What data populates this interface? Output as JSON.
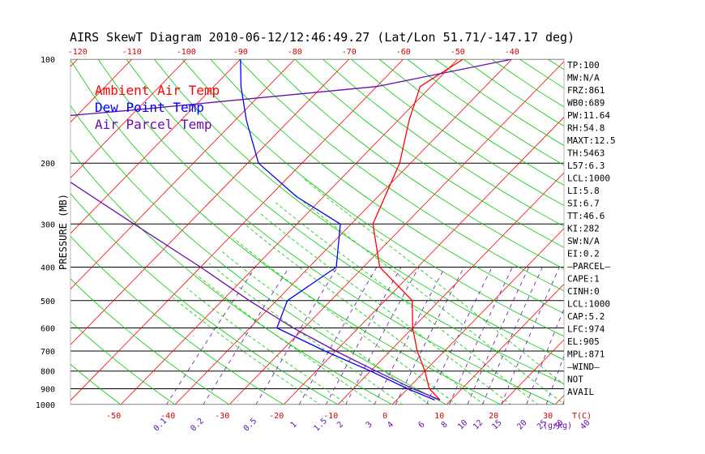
{
  "chart_data": {
    "type": "line",
    "title": "AIRS SkewT Diagram 2010-06-12/12:46:49.27 (Lat/Lon 51.71/-147.17 deg)",
    "ylabel": "PRESSURE (MB)",
    "x_unit_label": "T(C)",
    "mixing_unit_label": "(g/kg)",
    "y_scale": "log",
    "ylim": [
      1000,
      100
    ],
    "pressure_ticks": [
      "100",
      "200",
      "300",
      "400",
      "500",
      "600",
      "700",
      "800",
      "900",
      "1000"
    ],
    "top_temp_ticks": [
      "-120",
      "-110",
      "-100",
      "-90",
      "-80",
      "-70",
      "-60",
      "-50",
      "-40"
    ],
    "bottom_temp_ticks": [
      "-50",
      "-40",
      "-30",
      "-20",
      "-10",
      "0",
      "10",
      "20",
      "30"
    ],
    "mixing_ratio_labels": [
      "0.1",
      "0.2",
      "0.5",
      "1",
      "1.5",
      "2",
      "3",
      "4",
      "6",
      "8",
      "10",
      "12",
      "15",
      "20",
      "25",
      "30",
      "40"
    ],
    "legend": [
      {
        "name": "Ambient Air Temp",
        "color": "#ff0000"
      },
      {
        "name": "Dew Point Temp",
        "color": "#0000ff"
      },
      {
        "name": "Air Parcel Temp",
        "color": "#6a0dad"
      }
    ],
    "series": [
      {
        "name": "Ambient Air Temp",
        "color": "#ff0000",
        "points": [
          [
            8,
            970
          ],
          [
            4,
            900
          ],
          [
            0,
            800
          ],
          [
            -5,
            700
          ],
          [
            -10,
            600
          ],
          [
            -15,
            500
          ],
          [
            -27,
            400
          ],
          [
            -36,
            300
          ],
          [
            -42,
            200
          ],
          [
            -48,
            150
          ],
          [
            -52,
            120
          ],
          [
            -49,
            100
          ]
        ]
      },
      {
        "name": "Dew Point Temp",
        "color": "#0000ff",
        "points": [
          [
            7,
            970
          ],
          [
            0,
            900
          ],
          [
            -10,
            800
          ],
          [
            -22,
            700
          ],
          [
            -35,
            600
          ],
          [
            -38,
            500
          ],
          [
            -35,
            400
          ],
          [
            -42,
            300
          ],
          [
            -55,
            250
          ],
          [
            -68,
            200
          ],
          [
            -78,
            150
          ],
          [
            -85,
            120
          ],
          [
            -90,
            100
          ]
        ]
      },
      {
        "name": "Air Parcel Temp",
        "color": "#6a0dad",
        "points": [
          [
            8,
            970
          ],
          [
            1,
            900
          ],
          [
            -9,
            800
          ],
          [
            -20,
            700
          ],
          [
            -32,
            600
          ],
          [
            -45,
            500
          ],
          [
            -60,
            400
          ],
          [
            -80,
            300
          ],
          [
            -108,
            200
          ],
          [
            -120,
            150
          ],
          [
            -100,
            140
          ],
          [
            -60,
            120
          ],
          [
            -40,
            100
          ]
        ]
      }
    ],
    "indices": [
      "TP:100",
      "MW:N/A",
      "FRZ:861",
      "WB0:689",
      "PW:11.64",
      "RH:54.8",
      "MAXT:12.5",
      "TH:5463",
      "L57:6.3",
      "LCL:1000",
      "LI:5.8",
      "SI:6.7",
      "TT:46.6",
      "KI:282",
      "SW:N/A",
      "EI:0.2",
      "—PARCEL—",
      "CAPE:1",
      "CINH:0",
      "LCL:1000",
      "CAP:5.2",
      "LFC:974",
      "EL:905",
      "MPL:871",
      "—WIND—",
      "NOT",
      "AVAIL"
    ],
    "colors": {
      "isotherm": "#ff0000",
      "dry_adiabat": "#00cc00",
      "moist_adiabat": "#00cc00",
      "mixing_ratio": "#6a0dad",
      "isobar": "#000000"
    }
  }
}
